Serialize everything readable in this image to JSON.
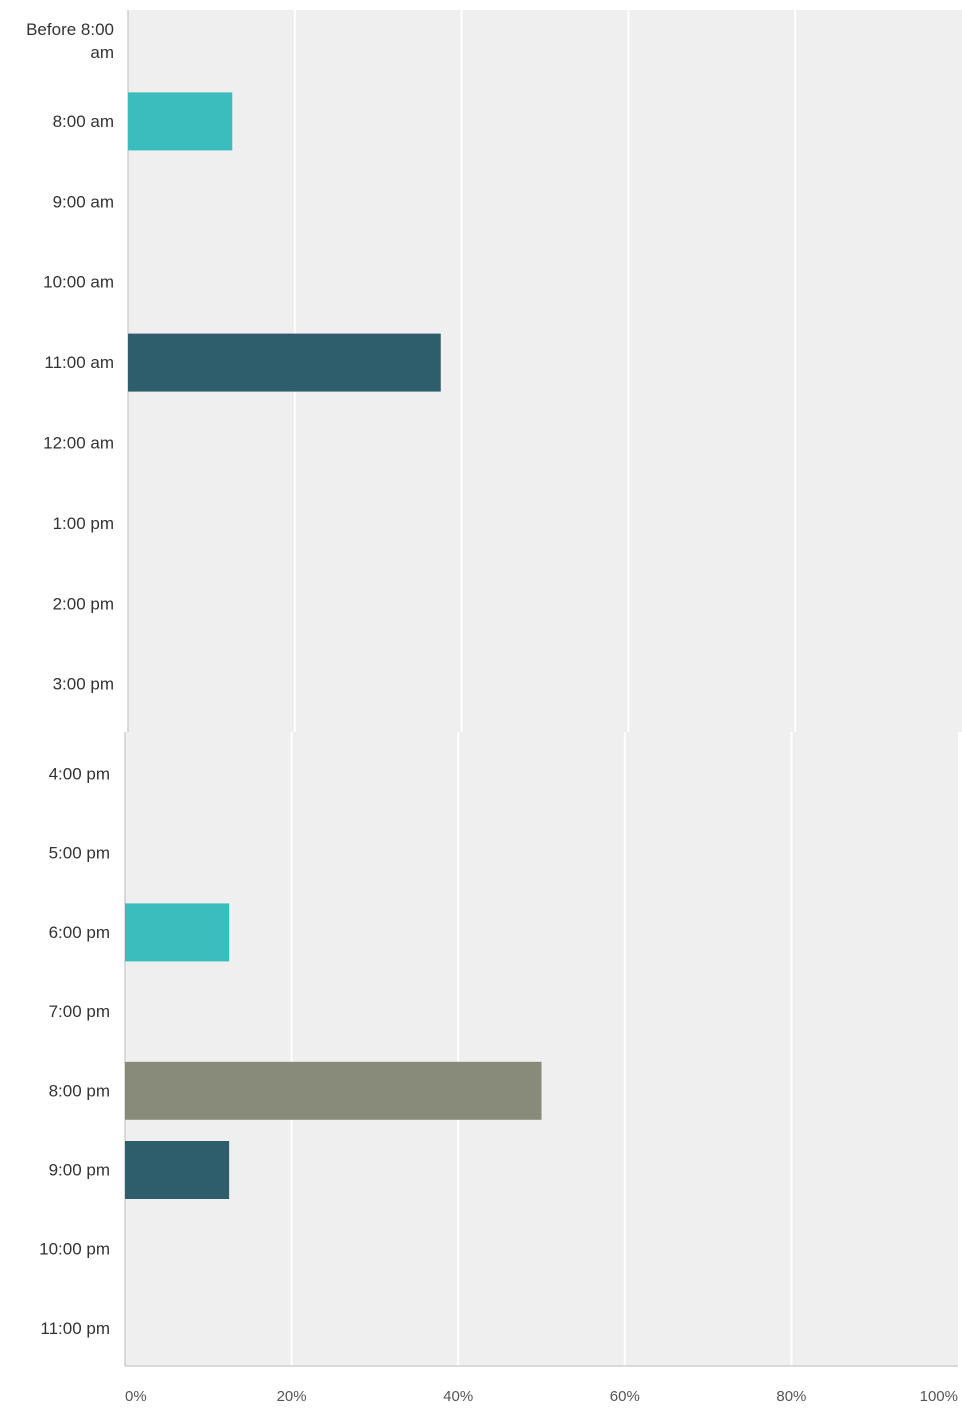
{
  "chart_data": [
    {
      "type": "bar",
      "orientation": "horizontal",
      "categories": [
        [
          "Before 8:00",
          "am"
        ],
        [
          "8:00 am"
        ],
        [
          "9:00 am"
        ],
        [
          "10:00 am"
        ],
        [
          "11:00 am"
        ],
        [
          "12:00 am"
        ],
        [
          "1:00 pm"
        ],
        [
          "2:00 pm"
        ],
        [
          "3:00 pm"
        ]
      ],
      "values": [
        0,
        12.5,
        0,
        0,
        37.5,
        0,
        0,
        0,
        0
      ],
      "bar_colors": [
        "#3bbdbd",
        "#3bbdbd",
        "#3bbdbd",
        "#3bbdbd",
        "#2e5d6b",
        "#3bbdbd",
        "#3bbdbd",
        "#3bbdbd",
        "#3bbdbd"
      ],
      "xlim": [
        0,
        100
      ],
      "grid": true,
      "show_x_ticks": false
    },
    {
      "type": "bar",
      "orientation": "horizontal",
      "categories": [
        [
          "4:00 pm"
        ],
        [
          "5:00 pm"
        ],
        [
          "6:00 pm"
        ],
        [
          "7:00 pm"
        ],
        [
          "8:00 pm"
        ],
        [
          "9:00 pm"
        ],
        [
          "10:00 pm"
        ],
        [
          "11:00 pm"
        ]
      ],
      "values": [
        0,
        0,
        12.5,
        0,
        50,
        12.5,
        0,
        0
      ],
      "bar_colors": [
        "#3bbdbd",
        "#3bbdbd",
        "#3bbdbd",
        "#3bbdbd",
        "#888a7a",
        "#2e5d6b",
        "#3bbdbd",
        "#3bbdbd"
      ],
      "xlim": [
        0,
        100
      ],
      "x_ticks": [
        "0%",
        "20%",
        "40%",
        "60%",
        "80%",
        "100%"
      ],
      "grid": true,
      "show_x_ticks": true
    }
  ],
  "colors": {
    "plot_background": "#efefef",
    "gridline": "#ffffff",
    "axis_line": "#cfcfcf"
  }
}
